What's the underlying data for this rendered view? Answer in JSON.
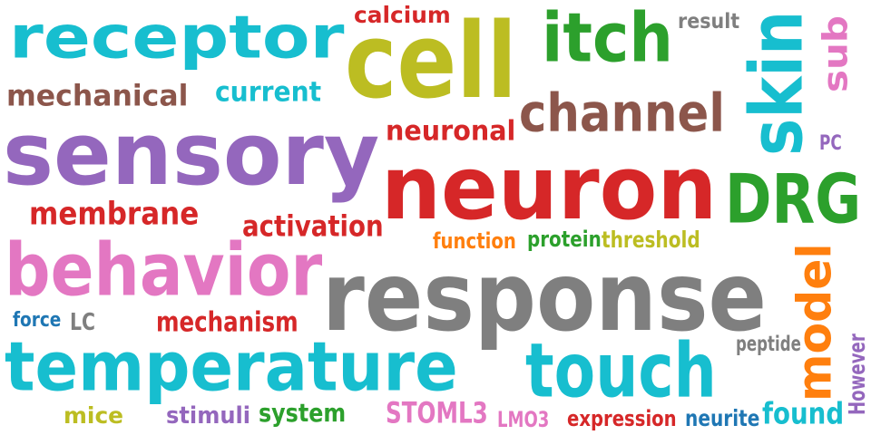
{
  "words": [
    {
      "text": "receptor",
      "color": "#17becf",
      "vertical": false
    },
    {
      "text": "cell",
      "color": "#bcbd22",
      "vertical": false
    },
    {
      "text": "itch",
      "color": "#2ca02c",
      "vertical": false
    },
    {
      "text": "calcium",
      "color": "#d62728",
      "vertical": false
    },
    {
      "text": "result",
      "color": "#7f7f7f",
      "vertical": false
    },
    {
      "text": "sub",
      "color": "#e377c2",
      "vertical": true
    },
    {
      "text": "mechanical",
      "color": "#8c564b",
      "vertical": false
    },
    {
      "text": "current",
      "color": "#17becf",
      "vertical": false
    },
    {
      "text": "channel",
      "color": "#8c564b",
      "vertical": false
    },
    {
      "text": "skin",
      "color": "#17becf",
      "vertical": true
    },
    {
      "text": "sensory",
      "color": "#9467bd",
      "vertical": false
    },
    {
      "text": "neuronal",
      "color": "#d62728",
      "vertical": false
    },
    {
      "text": "PC",
      "color": "#9467bd",
      "vertical": false
    },
    {
      "text": "neuron",
      "color": "#d62728",
      "vertical": false
    },
    {
      "text": "DRG",
      "color": "#2ca02c",
      "vertical": false
    },
    {
      "text": "membrane",
      "color": "#d62728",
      "vertical": false
    },
    {
      "text": "activation",
      "color": "#d62728",
      "vertical": false
    },
    {
      "text": "function",
      "color": "#ff7f0e",
      "vertical": false
    },
    {
      "text": "protein",
      "color": "#2ca02c",
      "vertical": false
    },
    {
      "text": "threshold",
      "color": "#bcbd22",
      "vertical": false
    },
    {
      "text": "behavior",
      "color": "#e377c2",
      "vertical": false
    },
    {
      "text": "response",
      "color": "#7f7f7f",
      "vertical": false
    },
    {
      "text": "model",
      "color": "#ff7f0e",
      "vertical": true
    },
    {
      "text": "force",
      "color": "#1f77b4",
      "vertical": false
    },
    {
      "text": "LC",
      "color": "#7f7f7f",
      "vertical": false
    },
    {
      "text": "mechanism",
      "color": "#d62728",
      "vertical": false
    },
    {
      "text": "peptide",
      "color": "#7f7f7f",
      "vertical": false
    },
    {
      "text": "temperature",
      "color": "#17becf",
      "vertical": false
    },
    {
      "text": "touch",
      "color": "#17becf",
      "vertical": false
    },
    {
      "text": "However",
      "color": "#9467bd",
      "vertical": true
    },
    {
      "text": "mice",
      "color": "#bcbd22",
      "vertical": false
    },
    {
      "text": "stimuli",
      "color": "#9467bd",
      "vertical": false
    },
    {
      "text": "system",
      "color": "#2ca02c",
      "vertical": false
    },
    {
      "text": "STOML3",
      "color": "#e377c2",
      "vertical": false
    },
    {
      "text": "LMO3",
      "color": "#e377c2",
      "vertical": false
    },
    {
      "text": "expression",
      "color": "#d62728",
      "vertical": false
    },
    {
      "text": "neurite",
      "color": "#1f77b4",
      "vertical": false
    },
    {
      "text": "found",
      "color": "#17becf",
      "vertical": false
    }
  ]
}
